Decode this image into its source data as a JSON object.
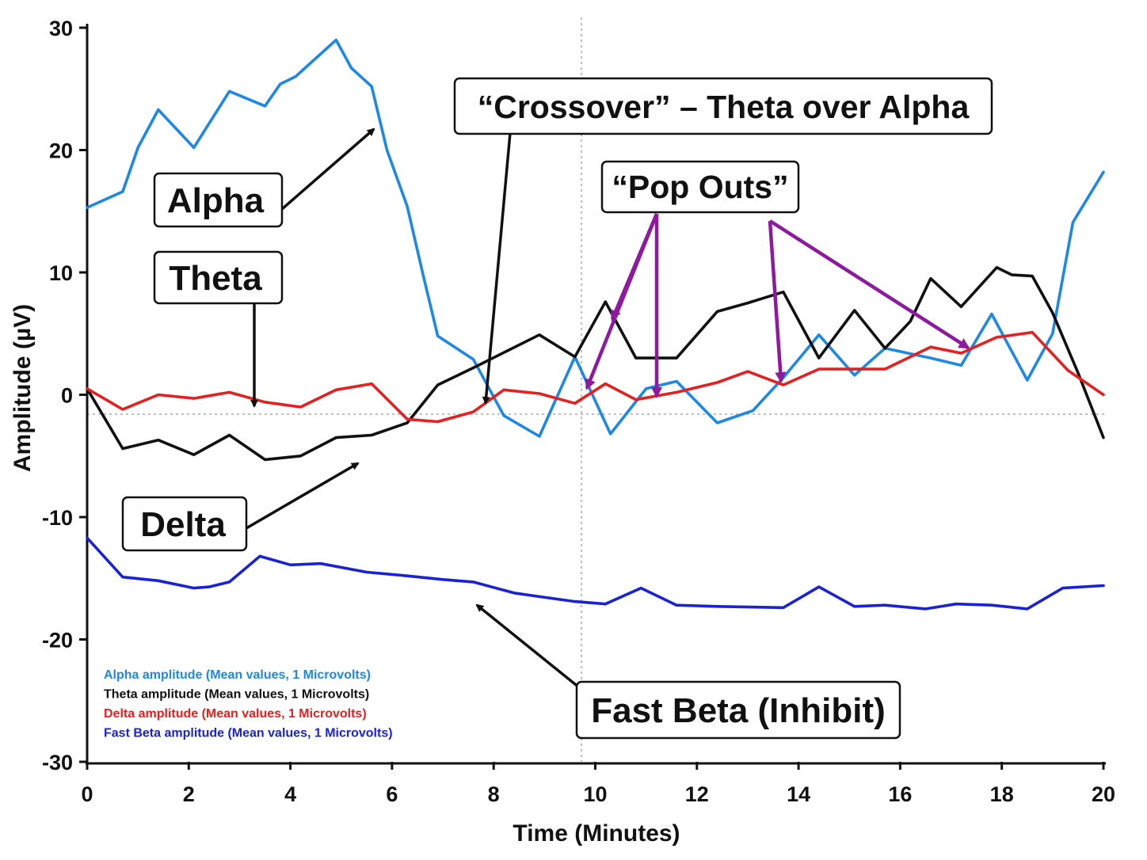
{
  "chart_data": {
    "type": "line",
    "title": "",
    "xlabel": "Time (Minutes)",
    "ylabel": "Amplitude (µV)",
    "xlim": [
      0,
      20
    ],
    "ylim": [
      -30,
      30
    ],
    "x_ticks": [
      "0",
      "2",
      "4",
      "6",
      "8",
      "10",
      "12",
      "14",
      "16",
      "18",
      "20"
    ],
    "y_ticks": [
      "30",
      "20",
      "10",
      "0",
      "-10",
      "-20",
      "-30"
    ],
    "grid": false,
    "reference_lines": {
      "y_zero": true,
      "x_vertical_at": 9.8
    },
    "legend_position": "bottom-left",
    "series": [
      {
        "name": "Alpha amplitude (Mean values, 1 Microvolts)",
        "color": "#1e88e5",
        "points": [
          [
            0,
            15.3
          ],
          [
            0.7,
            16.6
          ],
          [
            1.0,
            20.2
          ],
          [
            1.4,
            23.3
          ],
          [
            2.1,
            20.2
          ],
          [
            2.8,
            24.8
          ],
          [
            3.5,
            23.6
          ],
          [
            3.8,
            25.4
          ],
          [
            4.1,
            26.0
          ],
          [
            4.9,
            29.0
          ],
          [
            5.2,
            26.7
          ],
          [
            5.6,
            25.2
          ],
          [
            5.9,
            20.0
          ],
          [
            6.3,
            15.4
          ],
          [
            6.6,
            10.0
          ],
          [
            6.9,
            4.8
          ],
          [
            7.6,
            2.9
          ],
          [
            8.2,
            -1.7
          ],
          [
            8.9,
            -3.4
          ],
          [
            9.6,
            3.1
          ],
          [
            10.3,
            -3.2
          ],
          [
            11.0,
            0.5
          ],
          [
            11.6,
            1.1
          ],
          [
            12.4,
            -2.3
          ],
          [
            13.1,
            -1.3
          ],
          [
            13.7,
            1.4
          ],
          [
            14.4,
            4.9
          ],
          [
            15.1,
            1.6
          ],
          [
            15.7,
            3.8
          ],
          [
            16.6,
            3.0
          ],
          [
            17.2,
            2.4
          ],
          [
            17.8,
            6.6
          ],
          [
            18.5,
            1.2
          ],
          [
            19.0,
            5.0
          ],
          [
            19.4,
            14.1
          ],
          [
            20.0,
            18.2
          ]
        ]
      },
      {
        "name": "Theta amplitude (Mean values, 1 Microvolts)",
        "color": "#111111",
        "points": [
          [
            0,
            0.5
          ],
          [
            0.7,
            -4.4
          ],
          [
            1.4,
            -3.7
          ],
          [
            2.1,
            -4.9
          ],
          [
            2.8,
            -3.3
          ],
          [
            3.5,
            -5.3
          ],
          [
            4.2,
            -5.0
          ],
          [
            4.9,
            -3.5
          ],
          [
            5.6,
            -3.3
          ],
          [
            6.3,
            -2.3
          ],
          [
            6.9,
            0.8
          ],
          [
            7.6,
            2.2
          ],
          [
            8.9,
            4.9
          ],
          [
            9.6,
            3.1
          ],
          [
            10.2,
            7.6
          ],
          [
            10.8,
            3.0
          ],
          [
            11.6,
            3.0
          ],
          [
            12.4,
            6.8
          ],
          [
            13.0,
            7.5
          ],
          [
            13.7,
            8.4
          ],
          [
            14.4,
            3.0
          ],
          [
            15.1,
            6.9
          ],
          [
            15.7,
            3.8
          ],
          [
            16.2,
            6.0
          ],
          [
            16.6,
            9.5
          ],
          [
            17.2,
            7.2
          ],
          [
            17.9,
            10.4
          ],
          [
            18.2,
            9.8
          ],
          [
            18.6,
            9.7
          ],
          [
            19.0,
            6.7
          ],
          [
            19.5,
            1.8
          ],
          [
            20.0,
            -3.5
          ]
        ]
      },
      {
        "name": "Delta amplitude (Mean values, 1 Microvolts)",
        "color": "#e52020",
        "points": [
          [
            0,
            0.5
          ],
          [
            0.7,
            -1.2
          ],
          [
            1.4,
            0.0
          ],
          [
            2.1,
            -0.3
          ],
          [
            2.8,
            0.2
          ],
          [
            3.5,
            -0.6
          ],
          [
            4.2,
            -1.0
          ],
          [
            4.9,
            0.4
          ],
          [
            5.6,
            0.9
          ],
          [
            6.3,
            -2.0
          ],
          [
            6.9,
            -2.2
          ],
          [
            7.6,
            -1.4
          ],
          [
            8.2,
            0.4
          ],
          [
            8.9,
            0.1
          ],
          [
            9.6,
            -0.7
          ],
          [
            10.2,
            0.9
          ],
          [
            10.8,
            -0.4
          ],
          [
            11.6,
            0.2
          ],
          [
            12.4,
            1.0
          ],
          [
            13.0,
            1.9
          ],
          [
            13.7,
            0.8
          ],
          [
            14.4,
            2.1
          ],
          [
            15.1,
            2.1
          ],
          [
            15.7,
            2.1
          ],
          [
            16.6,
            3.9
          ],
          [
            17.2,
            3.4
          ],
          [
            17.9,
            4.7
          ],
          [
            18.6,
            5.1
          ],
          [
            19.3,
            2.0
          ],
          [
            20.0,
            0.0
          ]
        ]
      },
      {
        "name": "Fast Beta amplitude (Mean values, 1 Microvolts)",
        "color": "#1a22d8",
        "points": [
          [
            0,
            -11.7
          ],
          [
            0.7,
            -14.9
          ],
          [
            1.4,
            -15.2
          ],
          [
            2.1,
            -15.8
          ],
          [
            2.4,
            -15.7
          ],
          [
            2.8,
            -15.3
          ],
          [
            3.4,
            -13.2
          ],
          [
            4.0,
            -13.9
          ],
          [
            4.6,
            -13.8
          ],
          [
            5.5,
            -14.5
          ],
          [
            6.3,
            -14.8
          ],
          [
            7.0,
            -15.1
          ],
          [
            7.6,
            -15.3
          ],
          [
            8.4,
            -16.2
          ],
          [
            8.9,
            -16.5
          ],
          [
            9.6,
            -16.9
          ],
          [
            10.2,
            -17.1
          ],
          [
            10.9,
            -15.8
          ],
          [
            11.6,
            -17.2
          ],
          [
            12.4,
            -17.3
          ],
          [
            13.7,
            -17.4
          ],
          [
            14.4,
            -15.7
          ],
          [
            15.1,
            -17.3
          ],
          [
            15.7,
            -17.2
          ],
          [
            16.5,
            -17.5
          ],
          [
            17.1,
            -17.1
          ],
          [
            17.8,
            -17.2
          ],
          [
            18.5,
            -17.5
          ],
          [
            19.2,
            -15.8
          ],
          [
            20.0,
            -15.6
          ]
        ]
      }
    ],
    "annotations": [
      {
        "text": "“Crossover” – Theta over Alpha"
      },
      {
        "text": "Alpha"
      },
      {
        "text": "Theta"
      },
      {
        "text": "“Pop Outs”"
      },
      {
        "text": "Delta"
      },
      {
        "text": "Fast Beta (Inhibit)"
      }
    ]
  }
}
